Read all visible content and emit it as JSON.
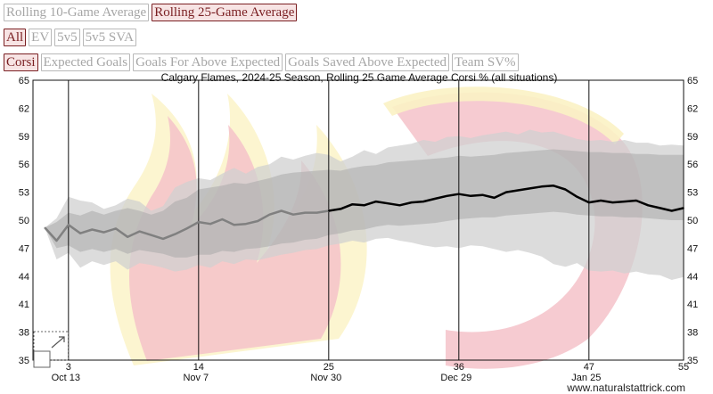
{
  "controls": {
    "range_buttons": [
      {
        "label": "Rolling 10-Game Average",
        "active": false
      },
      {
        "label": "Rolling 25-Game Average",
        "active": true
      }
    ],
    "situation_buttons": [
      {
        "label": "All",
        "active": true
      },
      {
        "label": "EV",
        "active": false
      },
      {
        "label": "5v5",
        "active": false
      },
      {
        "label": "5v5 SVA",
        "active": false
      }
    ],
    "metric_buttons": [
      {
        "label": "Corsi",
        "active": true
      },
      {
        "label": "Expected Goals",
        "active": false
      },
      {
        "label": "Goals For Above Expected",
        "active": false
      },
      {
        "label": "Goals Saved Above Expected",
        "active": false
      },
      {
        "label": "Team SV%",
        "active": false
      }
    ]
  },
  "colors": {
    "band_light": "#d0d0d0",
    "band_dark": "#a9a9a9",
    "line_early": "#808080",
    "line_recent": "#000000",
    "logo_red": "#f4c2c9",
    "logo_yellow": "#fbf2c4"
  },
  "chart_data": {
    "type": "line",
    "title": "Calgary Flames, 2024-25 Season, Rolling 25 Game Average Corsi % (all situations)",
    "ylim": [
      35,
      65
    ],
    "yticks": [
      35,
      38,
      41,
      44,
      47,
      50,
      53,
      56,
      59,
      62,
      65
    ],
    "xlim": [
      0,
      55
    ],
    "x_ticks": [
      {
        "game": 3,
        "date": "Oct 13"
      },
      {
        "game": 14,
        "date": "Nov 7"
      },
      {
        "game": 25,
        "date": "Nov 30"
      },
      {
        "game": 36,
        "date": "Dec 29"
      },
      {
        "game": 47,
        "date": "Jan 25"
      },
      {
        "game": 55,
        "date": ""
      }
    ],
    "gridlines": "vertical",
    "incomplete_until_game": 25,
    "series": [
      {
        "values": [
          [
            1,
            49.2
          ],
          [
            2,
            47.8
          ],
          [
            3,
            49.5
          ],
          [
            4,
            48.6
          ],
          [
            5,
            49.0
          ],
          [
            6,
            48.7
          ],
          [
            7,
            49.1
          ],
          [
            8,
            48.2
          ],
          [
            9,
            48.8
          ],
          [
            10,
            48.4
          ],
          [
            11,
            48.0
          ],
          [
            12,
            48.5
          ],
          [
            13,
            49.1
          ],
          [
            14,
            49.8
          ],
          [
            15,
            49.6
          ],
          [
            16,
            50.1
          ],
          [
            17,
            49.5
          ],
          [
            18,
            49.6
          ],
          [
            19,
            49.9
          ],
          [
            20,
            50.6
          ],
          [
            21,
            51.0
          ],
          [
            22,
            50.6
          ],
          [
            23,
            50.8
          ],
          [
            24,
            50.8
          ],
          [
            25,
            51.0
          ],
          [
            26,
            51.2
          ],
          [
            27,
            51.7
          ],
          [
            28,
            51.6
          ],
          [
            29,
            52.0
          ],
          [
            30,
            51.8
          ],
          [
            31,
            51.6
          ],
          [
            32,
            51.9
          ],
          [
            33,
            52.0
          ],
          [
            34,
            52.3
          ],
          [
            35,
            52.6
          ],
          [
            36,
            52.8
          ],
          [
            37,
            52.6
          ],
          [
            38,
            52.7
          ],
          [
            39,
            52.4
          ],
          [
            40,
            53.0
          ],
          [
            41,
            53.2
          ],
          [
            42,
            53.4
          ],
          [
            43,
            53.6
          ],
          [
            44,
            53.7
          ],
          [
            45,
            53.3
          ],
          [
            46,
            52.5
          ],
          [
            47,
            51.9
          ],
          [
            48,
            52.1
          ],
          [
            49,
            51.9
          ],
          [
            50,
            52.0
          ],
          [
            51,
            52.1
          ],
          [
            52,
            51.6
          ],
          [
            53,
            51.3
          ],
          [
            54,
            51.0
          ],
          [
            55,
            51.3
          ]
        ]
      }
    ],
    "bands": [
      {
        "upper": [
          [
            1,
            49.2
          ],
          [
            2,
            50.2
          ],
          [
            3,
            52.5
          ],
          [
            4,
            52.1
          ],
          [
            5,
            51.9
          ],
          [
            6,
            51.2
          ],
          [
            7,
            51.6
          ],
          [
            8,
            52.3
          ],
          [
            9,
            52.0
          ],
          [
            10,
            51.0
          ],
          [
            11,
            51.5
          ],
          [
            12,
            53.5
          ],
          [
            13,
            54.1
          ],
          [
            14,
            54.5
          ],
          [
            15,
            54.3
          ],
          [
            16,
            55.0
          ],
          [
            17,
            55.6
          ],
          [
            18,
            55.0
          ],
          [
            19,
            55.7
          ],
          [
            20,
            56.0
          ],
          [
            21,
            56.8
          ],
          [
            22,
            56.5
          ],
          [
            23,
            56.9
          ],
          [
            24,
            57.2
          ],
          [
            25,
            57.0
          ],
          [
            26,
            56.3
          ],
          [
            27,
            56.8
          ],
          [
            28,
            57.5
          ],
          [
            29,
            57.1
          ],
          [
            30,
            57.8
          ],
          [
            31,
            58.0
          ],
          [
            32,
            58.2
          ],
          [
            33,
            58.6
          ],
          [
            34,
            58.4
          ],
          [
            35,
            58.9
          ],
          [
            36,
            59.0
          ],
          [
            37,
            58.8
          ],
          [
            38,
            59.1
          ],
          [
            39,
            59.3
          ],
          [
            40,
            59.5
          ],
          [
            41,
            59.2
          ],
          [
            42,
            59.7
          ],
          [
            43,
            59.4
          ],
          [
            44,
            59.5
          ],
          [
            45,
            59.1
          ],
          [
            46,
            58.7
          ],
          [
            47,
            58.5
          ],
          [
            48,
            58.6
          ],
          [
            49,
            58.4
          ],
          [
            50,
            58.6
          ],
          [
            51,
            58.3
          ],
          [
            52,
            58.3
          ],
          [
            53,
            58.0
          ],
          [
            54,
            58.1
          ],
          [
            55,
            58.0
          ]
        ],
        "lower": [
          [
            1,
            49.2
          ],
          [
            2,
            45.8
          ],
          [
            3,
            46.5
          ],
          [
            4,
            44.9
          ],
          [
            5,
            45.6
          ],
          [
            6,
            45.2
          ],
          [
            7,
            45.6
          ],
          [
            8,
            44.7
          ],
          [
            9,
            45.4
          ],
          [
            10,
            45.2
          ],
          [
            11,
            44.9
          ],
          [
            12,
            44.5
          ],
          [
            13,
            44.7
          ],
          [
            14,
            45.2
          ],
          [
            15,
            44.9
          ],
          [
            16,
            45.6
          ],
          [
            17,
            45.3
          ],
          [
            18,
            45.8
          ],
          [
            19,
            45.7
          ],
          [
            20,
            46.0
          ],
          [
            21,
            46.3
          ],
          [
            22,
            46.5
          ],
          [
            23,
            46.8
          ],
          [
            24,
            46.9
          ],
          [
            25,
            47.3
          ],
          [
            26,
            47.5
          ],
          [
            27,
            47.8
          ],
          [
            28,
            47.6
          ],
          [
            29,
            48.0
          ],
          [
            30,
            48.1
          ],
          [
            31,
            47.8
          ],
          [
            32,
            47.6
          ],
          [
            33,
            47.3
          ],
          [
            34,
            47.1
          ],
          [
            35,
            47.2
          ],
          [
            36,
            47.0
          ],
          [
            37,
            47.3
          ],
          [
            38,
            47.2
          ],
          [
            39,
            46.9
          ],
          [
            40,
            46.6
          ],
          [
            41,
            46.8
          ],
          [
            42,
            46.5
          ],
          [
            43,
            46.1
          ],
          [
            44,
            45.3
          ],
          [
            45,
            45.0
          ],
          [
            46,
            45.4
          ],
          [
            47,
            44.6
          ],
          [
            48,
            44.5
          ],
          [
            49,
            44.6
          ],
          [
            50,
            44.3
          ],
          [
            51,
            44.5
          ],
          [
            52,
            44.2
          ],
          [
            53,
            44.1
          ],
          [
            54,
            43.6
          ],
          [
            55,
            43.9
          ]
        ]
      },
      {
        "upper": [
          [
            1,
            49.2
          ],
          [
            2,
            49.8
          ],
          [
            3,
            50.8
          ],
          [
            4,
            50.5
          ],
          [
            5,
            51.0
          ],
          [
            6,
            50.6
          ],
          [
            7,
            51.0
          ],
          [
            8,
            51.3
          ],
          [
            9,
            51.0
          ],
          [
            10,
            50.6
          ],
          [
            11,
            51.0
          ],
          [
            12,
            52.0
          ],
          [
            13,
            52.4
          ],
          [
            14,
            53.3
          ],
          [
            15,
            53.5
          ],
          [
            16,
            53.7
          ],
          [
            17,
            54.0
          ],
          [
            18,
            53.9
          ],
          [
            19,
            54.2
          ],
          [
            20,
            54.5
          ],
          [
            21,
            54.9
          ],
          [
            22,
            55.1
          ],
          [
            23,
            55.2
          ],
          [
            24,
            55.3
          ],
          [
            25,
            55.4
          ],
          [
            26,
            55.3
          ],
          [
            27,
            55.6
          ],
          [
            28,
            55.8
          ],
          [
            29,
            55.9
          ],
          [
            30,
            56.2
          ],
          [
            31,
            56.3
          ],
          [
            32,
            56.4
          ],
          [
            33,
            56.5
          ],
          [
            34,
            56.6
          ],
          [
            35,
            56.7
          ],
          [
            36,
            56.9
          ],
          [
            37,
            56.8
          ],
          [
            38,
            56.9
          ],
          [
            39,
            57.0
          ],
          [
            40,
            57.2
          ],
          [
            41,
            57.3
          ],
          [
            42,
            57.4
          ],
          [
            43,
            57.5
          ],
          [
            44,
            57.6
          ],
          [
            45,
            57.5
          ],
          [
            46,
            57.4
          ],
          [
            47,
            57.3
          ],
          [
            48,
            57.3
          ],
          [
            49,
            57.2
          ],
          [
            50,
            57.2
          ],
          [
            51,
            57.1
          ],
          [
            52,
            57.1
          ],
          [
            53,
            57.0
          ],
          [
            54,
            57.0
          ],
          [
            55,
            57.0
          ]
        ],
        "lower": [
          [
            1,
            49.2
          ],
          [
            2,
            47.0
          ],
          [
            3,
            47.3
          ],
          [
            4,
            46.6
          ],
          [
            5,
            46.9
          ],
          [
            6,
            46.6
          ],
          [
            7,
            46.9
          ],
          [
            8,
            46.4
          ],
          [
            9,
            46.8
          ],
          [
            10,
            46.6
          ],
          [
            11,
            46.4
          ],
          [
            12,
            46.0
          ],
          [
            13,
            46.0
          ],
          [
            14,
            46.3
          ],
          [
            15,
            46.3
          ],
          [
            16,
            46.7
          ],
          [
            17,
            46.6
          ],
          [
            18,
            46.9
          ],
          [
            19,
            47.0
          ],
          [
            20,
            47.2
          ],
          [
            21,
            47.5
          ],
          [
            22,
            47.6
          ],
          [
            23,
            47.9
          ],
          [
            24,
            48.0
          ],
          [
            25,
            48.4
          ],
          [
            26,
            48.6
          ],
          [
            27,
            48.9
          ],
          [
            28,
            49.0
          ],
          [
            29,
            49.3
          ],
          [
            30,
            49.5
          ],
          [
            31,
            49.4
          ],
          [
            32,
            49.5
          ],
          [
            33,
            49.6
          ],
          [
            34,
            49.7
          ],
          [
            35,
            49.9
          ],
          [
            36,
            50.1
          ],
          [
            37,
            50.2
          ],
          [
            38,
            50.3
          ],
          [
            39,
            50.3
          ],
          [
            40,
            50.5
          ],
          [
            41,
            50.6
          ],
          [
            42,
            50.7
          ],
          [
            43,
            50.8
          ],
          [
            44,
            50.9
          ],
          [
            45,
            50.8
          ],
          [
            46,
            50.6
          ],
          [
            47,
            50.5
          ],
          [
            48,
            50.4
          ],
          [
            49,
            50.4
          ],
          [
            50,
            50.3
          ],
          [
            51,
            50.3
          ],
          [
            52,
            50.2
          ],
          [
            53,
            50.1
          ],
          [
            54,
            50.0
          ],
          [
            55,
            50.0
          ]
        ]
      }
    ]
  },
  "credit": "www.naturalstattrick.com"
}
